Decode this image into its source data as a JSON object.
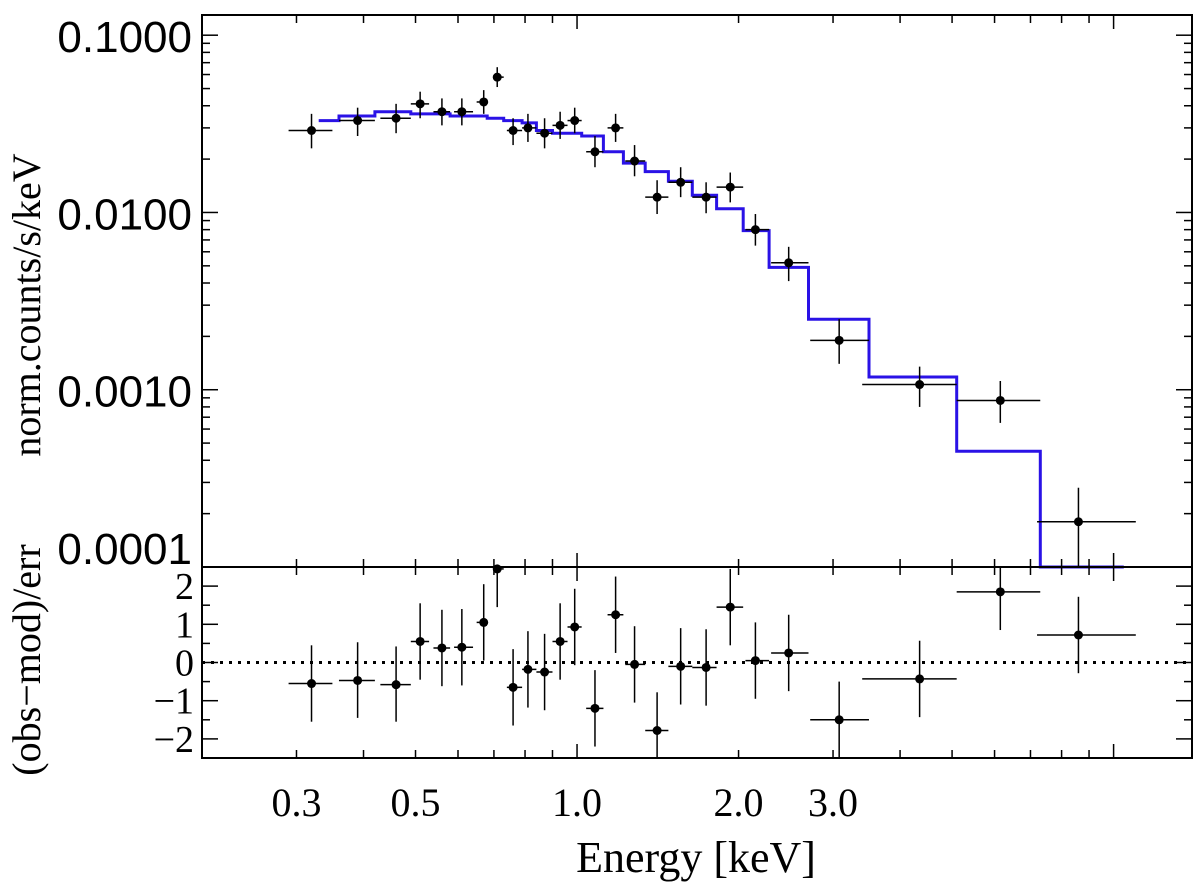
{
  "chart_data": [
    {
      "type": "scatter",
      "panel": "spectrum",
      "xlabel": "Energy [keV]",
      "ylabel": "norm.counts/s/keV",
      "xscale": "log",
      "yscale": "log",
      "xlim": [
        0.2,
        14
      ],
      "ylim": [
        0.0001,
        0.13
      ],
      "x_ticks": [
        0.3,
        0.5,
        1.0,
        2.0,
        3.0
      ],
      "x_tick_labels": [
        "0.3",
        "0.5",
        "1.0",
        "2.0",
        "3.0"
      ],
      "y_ticks": [
        0.0001,
        0.001,
        0.01,
        0.1
      ],
      "y_tick_labels": [
        "0.0001",
        "0.0010",
        "0.0100",
        "0.1000"
      ],
      "grid": false,
      "series": [
        {
          "kind": "data_points",
          "color": "#000000",
          "x": [
            0.32,
            0.39,
            0.46,
            0.51,
            0.56,
            0.61,
            0.67,
            0.71,
            0.76,
            0.81,
            0.87,
            0.93,
            0.99,
            1.08,
            1.18,
            1.28,
            1.41,
            1.56,
            1.74,
            1.93,
            2.15,
            2.48,
            3.08,
            4.35,
            6.15,
            8.6
          ],
          "x_lo": [
            0.29,
            0.36,
            0.43,
            0.49,
            0.54,
            0.59,
            0.65,
            0.7,
            0.74,
            0.79,
            0.84,
            0.9,
            0.96,
            1.04,
            1.14,
            1.23,
            1.34,
            1.48,
            1.64,
            1.82,
            2.06,
            2.3,
            2.72,
            3.4,
            5.1,
            7.2
          ],
          "x_hi": [
            0.35,
            0.42,
            0.49,
            0.53,
            0.58,
            0.64,
            0.68,
            0.73,
            0.79,
            0.84,
            0.9,
            0.96,
            1.02,
            1.12,
            1.22,
            1.34,
            1.48,
            1.64,
            1.82,
            2.04,
            2.28,
            2.7,
            3.5,
            5.1,
            7.3,
            11.0
          ],
          "y": [
            0.029,
            0.033,
            0.034,
            0.041,
            0.037,
            0.037,
            0.042,
            0.058,
            0.029,
            0.03,
            0.028,
            0.031,
            0.033,
            0.022,
            0.03,
            0.0195,
            0.0122,
            0.0148,
            0.0122,
            0.0139,
            0.008,
            0.0052,
            0.0019,
            0.00107,
            0.00087,
            0.00018
          ],
          "y_lo": [
            0.023,
            0.027,
            0.028,
            0.034,
            0.031,
            0.031,
            0.036,
            0.051,
            0.024,
            0.025,
            0.023,
            0.026,
            0.028,
            0.018,
            0.025,
            0.016,
            0.0098,
            0.0122,
            0.0099,
            0.0114,
            0.0065,
            0.0041,
            0.0014,
            0.0008,
            0.00065,
            0.0001
          ],
          "y_hi": [
            0.036,
            0.039,
            0.041,
            0.048,
            0.044,
            0.044,
            0.049,
            0.066,
            0.034,
            0.036,
            0.034,
            0.037,
            0.039,
            0.027,
            0.036,
            0.024,
            0.0152,
            0.018,
            0.0148,
            0.0168,
            0.0098,
            0.0064,
            0.0025,
            0.00135,
            0.00112,
            0.00028
          ]
        },
        {
          "kind": "model_step",
          "color": "#2a12e6",
          "x_edges": [
            0.33,
            0.36,
            0.42,
            0.49,
            0.53,
            0.58,
            0.64,
            0.68,
            0.73,
            0.79,
            0.84,
            0.9,
            0.96,
            1.02,
            1.12,
            1.22,
            1.34,
            1.48,
            1.64,
            1.82,
            2.04,
            2.28,
            2.7,
            3.5,
            5.1,
            7.3
          ],
          "y": [
            0.033,
            0.035,
            0.037,
            0.036,
            0.036,
            0.035,
            0.035,
            0.034,
            0.033,
            0.032,
            0.029,
            0.028,
            0.028,
            0.027,
            0.022,
            0.019,
            0.017,
            0.015,
            0.0125,
            0.0105,
            0.0079,
            0.0049,
            0.0025,
            0.00118,
            0.00045,
            0.0001
          ]
        }
      ]
    },
    {
      "type": "scatter",
      "panel": "residuals",
      "xlabel": "Energy [keV]",
      "ylabel": "(obs−mod)/err",
      "xscale": "log",
      "yscale": "linear",
      "xlim": [
        0.2,
        14
      ],
      "ylim": [
        -2.5,
        2.5
      ],
      "y_ticks": [
        -2,
        -1,
        0,
        1,
        2
      ],
      "y_tick_labels": [
        "−2",
        "−1",
        "0",
        "1",
        "2"
      ],
      "reference_line": 0,
      "series": [
        {
          "kind": "residuals",
          "color": "#000000",
          "x": [
            0.32,
            0.39,
            0.46,
            0.51,
            0.56,
            0.61,
            0.67,
            0.71,
            0.76,
            0.81,
            0.87,
            0.93,
            0.99,
            1.08,
            1.18,
            1.28,
            1.41,
            1.56,
            1.74,
            1.93,
            2.15,
            2.48,
            3.08,
            4.35,
            6.15,
            8.6
          ],
          "x_lo": [
            0.29,
            0.36,
            0.43,
            0.49,
            0.54,
            0.59,
            0.65,
            0.7,
            0.74,
            0.79,
            0.84,
            0.9,
            0.96,
            1.04,
            1.14,
            1.23,
            1.34,
            1.48,
            1.64,
            1.82,
            2.06,
            2.3,
            2.72,
            3.4,
            5.1,
            7.2
          ],
          "x_hi": [
            0.35,
            0.42,
            0.49,
            0.53,
            0.58,
            0.64,
            0.68,
            0.73,
            0.79,
            0.84,
            0.9,
            0.96,
            1.02,
            1.12,
            1.22,
            1.34,
            1.48,
            1.64,
            1.82,
            2.04,
            2.28,
            2.7,
            3.5,
            5.1,
            7.3,
            11.0
          ],
          "y": [
            -0.55,
            -0.47,
            -0.58,
            0.55,
            0.38,
            0.4,
            1.05,
            2.45,
            -0.65,
            -0.18,
            -0.25,
            0.55,
            0.93,
            -1.2,
            1.25,
            -0.05,
            -1.78,
            -0.1,
            -0.13,
            1.45,
            0.05,
            0.25,
            -1.5,
            -0.43,
            1.85,
            0.72
          ],
          "y_lo": [
            -1.55,
            -1.45,
            -1.55,
            -0.45,
            -0.62,
            -0.6,
            0.05,
            1.45,
            -1.65,
            -1.18,
            -1.25,
            -0.45,
            -0.07,
            -2.2,
            0.25,
            -1.05,
            -2.78,
            -1.1,
            -1.13,
            0.45,
            -0.95,
            -0.75,
            -2.5,
            -1.43,
            0.85,
            -0.28
          ],
          "y_hi": [
            0.45,
            0.53,
            0.42,
            1.55,
            1.38,
            1.4,
            2.05,
            2.5,
            0.35,
            0.82,
            0.75,
            1.55,
            1.93,
            -0.2,
            2.25,
            0.95,
            -0.78,
            0.9,
            0.87,
            2.45,
            1.05,
            1.25,
            -0.5,
            0.57,
            2.5,
            1.72
          ]
        }
      ]
    }
  ]
}
